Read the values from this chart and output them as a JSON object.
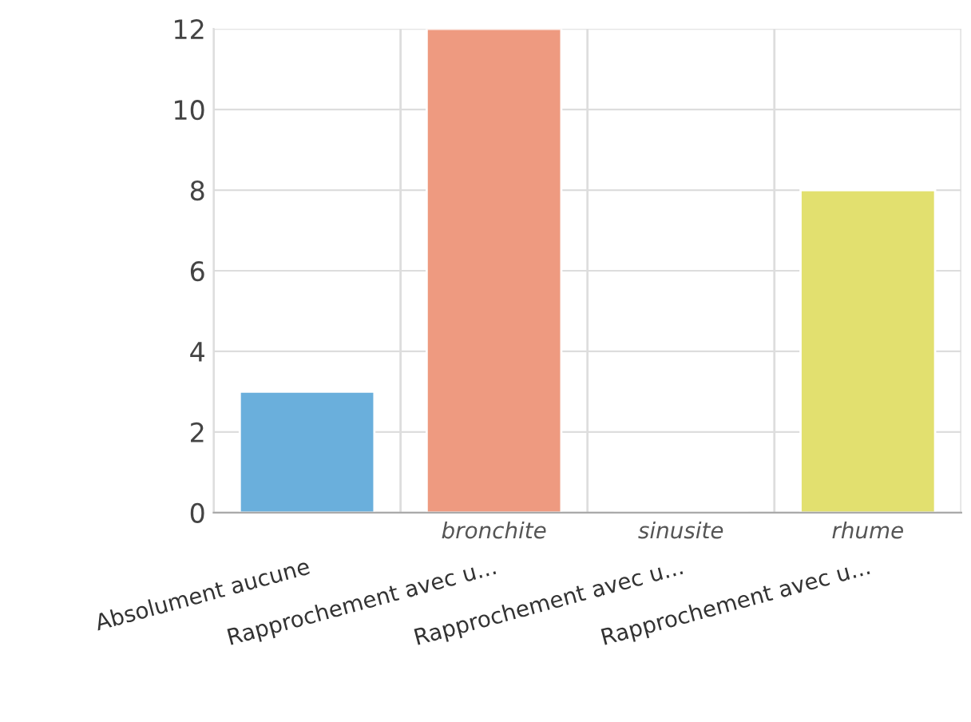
{
  "chart_data": {
    "type": "bar",
    "categories": [
      "Absolument aucune",
      "Rapprochement avec u...",
      "Rapprochement avec u...",
      "Rapprochement avec u..."
    ],
    "values": [
      3,
      12,
      0,
      8
    ],
    "colors": [
      "#6aafdc",
      "#ee9a80",
      null,
      "#e2e06f"
    ],
    "ylim": [
      0,
      12
    ],
    "yticks": [
      0,
      2,
      4,
      6,
      8,
      10,
      12
    ],
    "grid": true,
    "annotations": [
      "bronchite",
      "sinusite",
      "rhume"
    ]
  }
}
